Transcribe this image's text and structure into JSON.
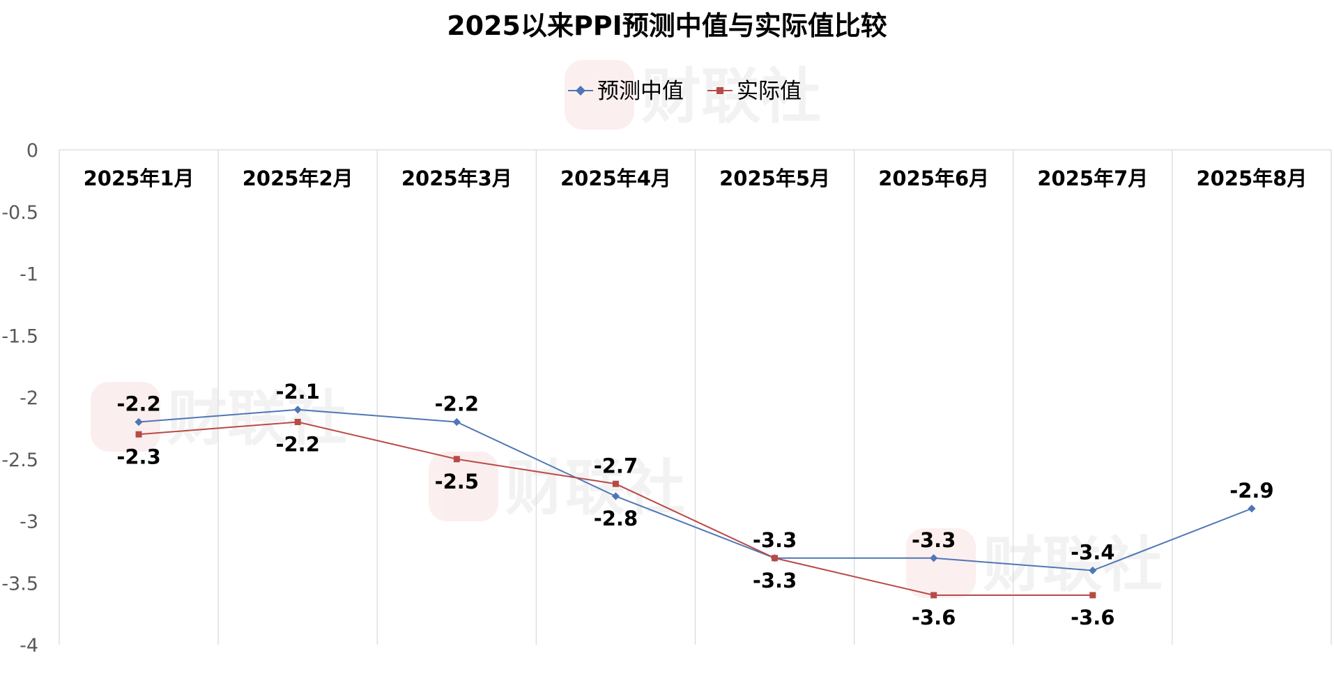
{
  "chart_data": {
    "type": "line",
    "title": "2025以来PPI预测中值与实际值比较",
    "categories": [
      "2025年1月",
      "2025年2月",
      "2025年3月",
      "2025年4月",
      "2025年5月",
      "2025年6月",
      "2025年7月",
      "2025年8月"
    ],
    "series": [
      {
        "name": "预测中值",
        "color": "#4F76B6",
        "values": [
          -2.2,
          -2.1,
          -2.2,
          -2.8,
          -3.3,
          -3.3,
          -3.4,
          -2.9
        ]
      },
      {
        "name": "实际值",
        "color": "#B84A46",
        "values": [
          -2.3,
          -2.2,
          -2.5,
          -2.7,
          -3.3,
          -3.6,
          -3.6,
          null
        ]
      }
    ],
    "y_ticks": [
      "0",
      "-0.5",
      "-1",
      "-1.5",
      "-2",
      "-2.5",
      "-3",
      "-3.5",
      "-4"
    ],
    "ylim": [
      -4,
      0
    ],
    "grid": "vertical",
    "legend_position": "top-center",
    "watermark": "财联社"
  }
}
